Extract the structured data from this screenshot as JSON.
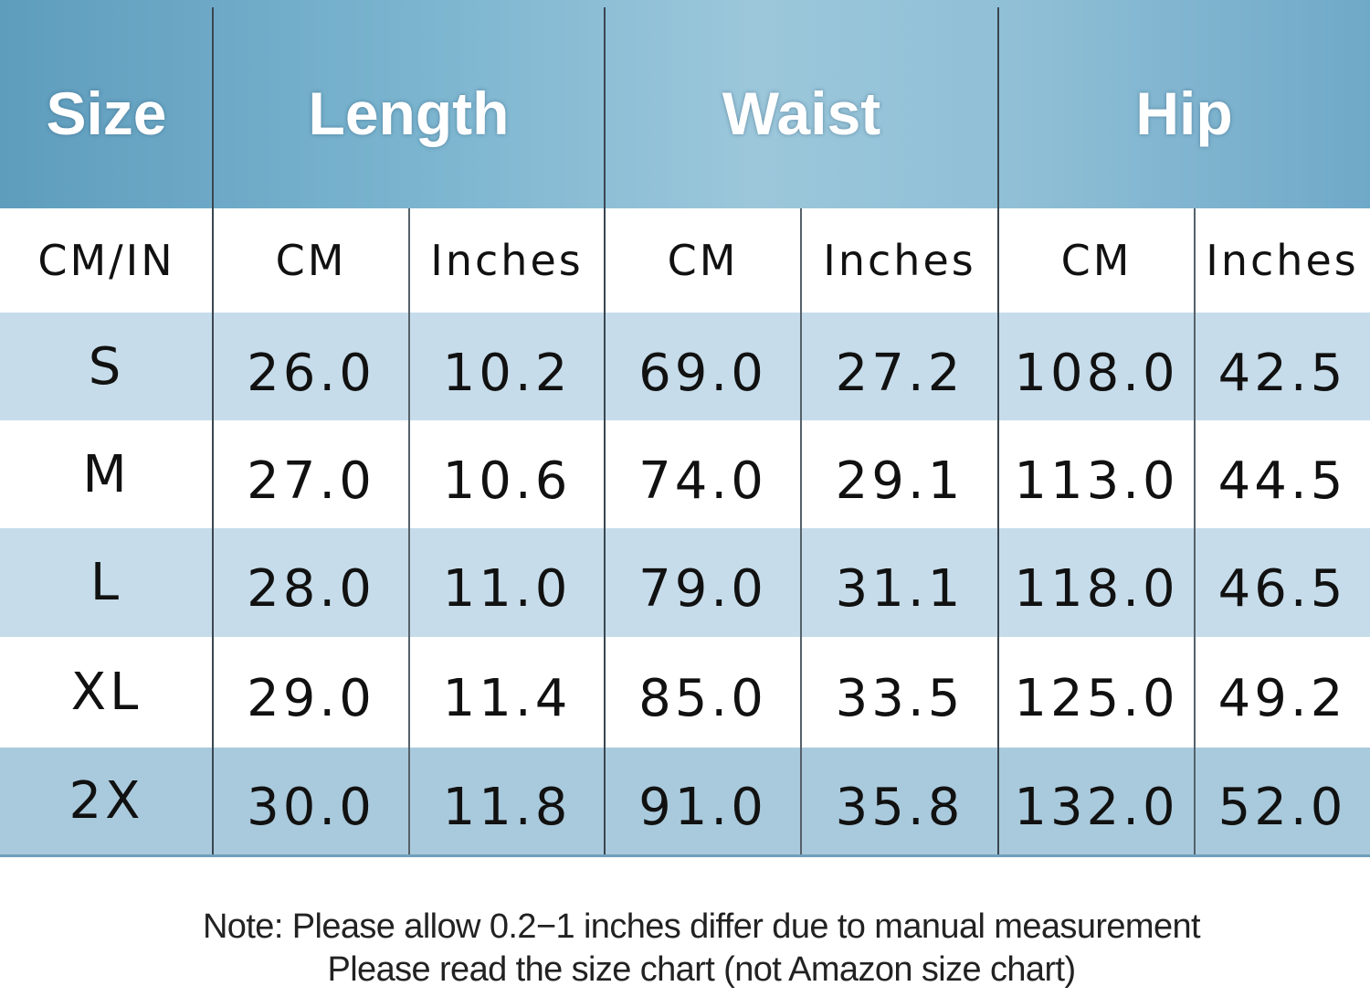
{
  "header": {
    "columns": [
      "Size",
      "Length",
      "Waist",
      "Hip"
    ]
  },
  "table": {
    "units": [
      "CM/IN",
      "CM",
      "Inches",
      "CM",
      "Inches",
      "CM",
      "Inches"
    ],
    "rows": [
      [
        "S",
        "26.0",
        "10.2",
        "69.0",
        "27.2",
        "108.0",
        "42.5"
      ],
      [
        "M",
        "27.0",
        "10.6",
        "74.0",
        "29.1",
        "113.0",
        "44.5"
      ],
      [
        "L",
        "28.0",
        "11.0",
        "79.0",
        "31.1",
        "118.0",
        "46.5"
      ],
      [
        "XL",
        "29.0",
        "11.4",
        "85.0",
        "33.5",
        "125.0",
        "49.2"
      ],
      [
        "2X",
        "30.0",
        "11.8",
        "91.0",
        "35.8",
        "132.0",
        "52.0"
      ]
    ]
  },
  "notes": [
    "Note: Please allow 0.2−1 inches differ due to manual measurement",
    "Please read the size chart (not Amazon size chart)"
  ]
}
